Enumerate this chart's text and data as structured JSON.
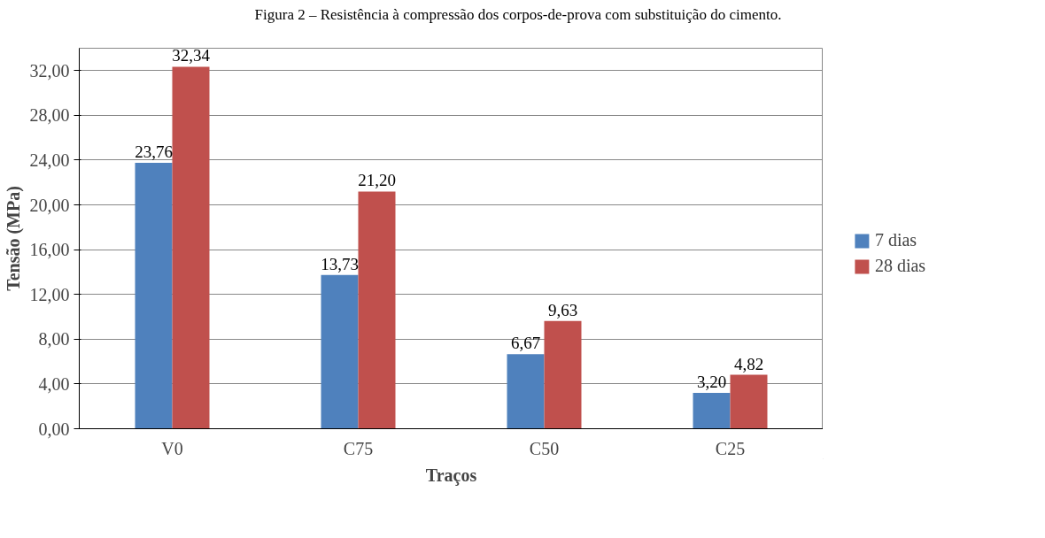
{
  "chart_data": {
    "type": "bar",
    "title": "Figura 2 – Resistência à compressão dos corpos-de-prova com substituição do cimento.",
    "xlabel": "Traços",
    "ylabel": "Tensão (MPa)",
    "categories": [
      "V0",
      "C75",
      "C50",
      "C25"
    ],
    "series": [
      {
        "name": "7 dias",
        "color": "#4f81bd",
        "values": [
          23.76,
          13.73,
          6.67,
          3.2
        ],
        "value_labels": [
          "23,76",
          "13,73",
          "6,67",
          "3,20"
        ]
      },
      {
        "name": "28 dias",
        "color": "#c0504d",
        "values": [
          32.34,
          21.2,
          9.63,
          4.82
        ],
        "value_labels": [
          "32,34",
          "21,20",
          "9,63",
          "4,82"
        ]
      }
    ],
    "ylim": [
      0,
      34
    ],
    "yticks": [
      {
        "value": 0,
        "label": "0,00"
      },
      {
        "value": 4,
        "label": "4,00"
      },
      {
        "value": 8,
        "label": "8,00"
      },
      {
        "value": 12,
        "label": "12,00"
      },
      {
        "value": 16,
        "label": "16,00"
      },
      {
        "value": 20,
        "label": "20,00"
      },
      {
        "value": 24,
        "label": "24,00"
      },
      {
        "value": 28,
        "label": "28,00"
      },
      {
        "value": 32,
        "label": "32,00"
      }
    ],
    "grid": "y",
    "legend": "right"
  }
}
